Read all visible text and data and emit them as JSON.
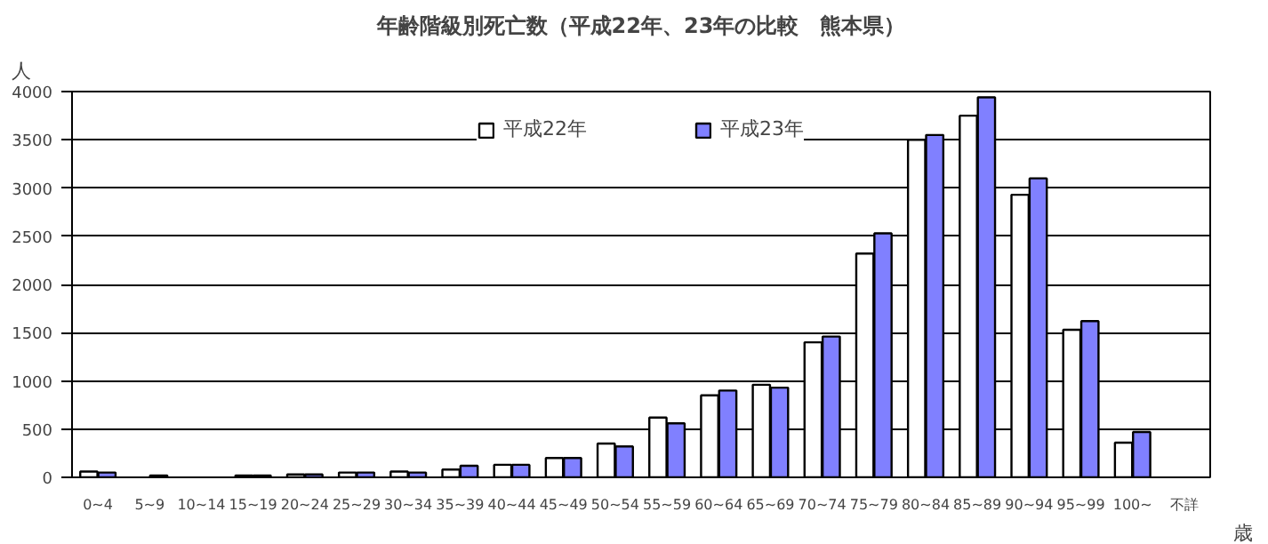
{
  "chart_data": {
    "type": "bar",
    "title": "年齢階級別死亡数（平成22年、23年の比較　熊本県）",
    "ylabel": "人",
    "xlabel": "歳",
    "categories": [
      "0~4",
      "5~9",
      "10~14",
      "15~19",
      "20~24",
      "25~29",
      "30~34",
      "35~39",
      "40~44",
      "45~49",
      "50~54",
      "55~59",
      "60~64",
      "65~69",
      "70~74",
      "75~79",
      "80~84",
      "85~89",
      "90~94",
      "95~99",
      "100~",
      "不詳"
    ],
    "series": [
      {
        "name": "平成22年",
        "color": "#ffffff",
        "values": [
          60,
          null,
          null,
          20,
          30,
          50,
          60,
          80,
          130,
          200,
          350,
          620,
          850,
          960,
          1400,
          2320,
          3500,
          3750,
          2930,
          1530,
          360,
          null
        ]
      },
      {
        "name": "平成23年",
        "color": "#8080ff",
        "values": [
          50,
          20,
          null,
          20,
          30,
          50,
          50,
          120,
          130,
          200,
          320,
          560,
          900,
          930,
          1460,
          2530,
          3550,
          3940,
          3100,
          1620,
          470,
          null
        ]
      }
    ],
    "ylim": [
      0,
      4000
    ],
    "yticks": [
      0,
      500,
      1000,
      1500,
      2000,
      2500,
      3000,
      3500,
      4000
    ],
    "grid": "y",
    "legend": "top"
  }
}
